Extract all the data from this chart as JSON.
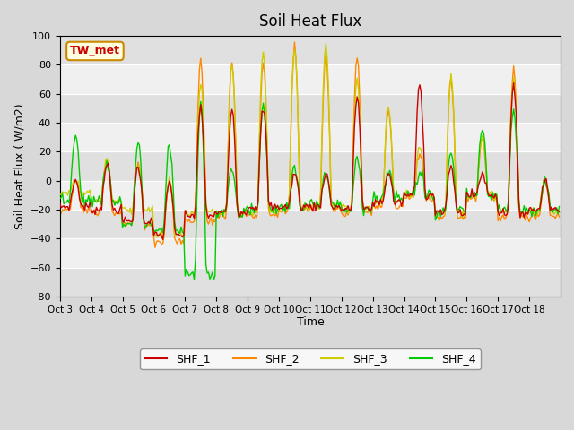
{
  "title": "Soil Heat Flux",
  "ylabel": "Soil Heat Flux ( W/m2)",
  "xlabel": "Time",
  "ylim": [
    -80,
    100
  ],
  "annotation": "TW_met",
  "series_colors": [
    "#cc0000",
    "#ff8800",
    "#cccc00",
    "#00cc00"
  ],
  "series_names": [
    "SHF_1",
    "SHF_2",
    "SHF_3",
    "SHF_4"
  ],
  "xtick_labels": [
    "Oct 3",
    "Oct 4",
    "Oct 5",
    "Oct 6",
    "Oct 7",
    "Oct 8",
    "Oct 9",
    "Oct 10",
    "Oct 11",
    "Oct 12",
    "Oct 13",
    "Oct 14",
    "Oct 15",
    "Oct 16",
    "Oct 17",
    "Oct 18"
  ],
  "ytick_vals": [
    -80,
    -60,
    -40,
    -20,
    0,
    20,
    40,
    60,
    80,
    100
  ],
  "n_points": 384,
  "days": 16
}
